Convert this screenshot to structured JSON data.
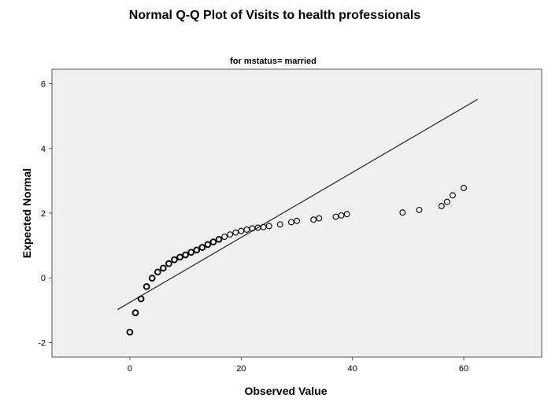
{
  "chart_data": {
    "type": "scatter",
    "title": "Normal Q-Q Plot of Visits to health professionals",
    "subtitle": "for mstatus= married",
    "xlabel": "Observed Value",
    "ylabel": "Expected Normal",
    "xlim": [
      -14,
      74
    ],
    "ylim": [
      -2.45,
      6.45
    ],
    "xticks": [
      0,
      20,
      40,
      60
    ],
    "yticks": [
      -2,
      0,
      2,
      4,
      6
    ],
    "grid": false,
    "plot_background": "#f0f0f0",
    "marker_color": "#000000",
    "reference_line": {
      "x": [
        -2.2,
        62.5
      ],
      "y": [
        -0.98,
        5.52
      ]
    },
    "series": [
      {
        "points": [
          {
            "x": 0,
            "y": -1.68
          },
          {
            "x": 1,
            "y": -1.08
          },
          {
            "x": 2,
            "y": -0.65
          },
          {
            "x": 3,
            "y": -0.27
          },
          {
            "x": 4,
            "y": -0.01
          },
          {
            "x": 5,
            "y": 0.18
          },
          {
            "x": 6,
            "y": 0.3
          },
          {
            "x": 7,
            "y": 0.44
          },
          {
            "x": 8,
            "y": 0.56
          },
          {
            "x": 9,
            "y": 0.64
          },
          {
            "x": 10,
            "y": 0.71
          },
          {
            "x": 11,
            "y": 0.79
          },
          {
            "x": 12,
            "y": 0.86
          },
          {
            "x": 13,
            "y": 0.94
          },
          {
            "x": 14,
            "y": 1.03
          },
          {
            "x": 15,
            "y": 1.11
          },
          {
            "x": 16,
            "y": 1.19
          },
          {
            "x": 17,
            "y": 1.27
          },
          {
            "x": 18,
            "y": 1.34
          },
          {
            "x": 19,
            "y": 1.4
          },
          {
            "x": 20,
            "y": 1.45
          },
          {
            "x": 21,
            "y": 1.49
          },
          {
            "x": 22,
            "y": 1.53
          },
          {
            "x": 23,
            "y": 1.55
          },
          {
            "x": 24,
            "y": 1.57
          },
          {
            "x": 25,
            "y": 1.6
          },
          {
            "x": 27,
            "y": 1.65
          },
          {
            "x": 29,
            "y": 1.72
          },
          {
            "x": 30,
            "y": 1.76
          },
          {
            "x": 33,
            "y": 1.8
          },
          {
            "x": 34,
            "y": 1.84
          },
          {
            "x": 37,
            "y": 1.89
          },
          {
            "x": 38,
            "y": 1.93
          },
          {
            "x": 39,
            "y": 1.97
          },
          {
            "x": 49,
            "y": 2.02
          },
          {
            "x": 52,
            "y": 2.1
          },
          {
            "x": 56,
            "y": 2.22
          },
          {
            "x": 57,
            "y": 2.35
          },
          {
            "x": 58,
            "y": 2.55
          },
          {
            "x": 60,
            "y": 2.78
          }
        ]
      }
    ]
  }
}
